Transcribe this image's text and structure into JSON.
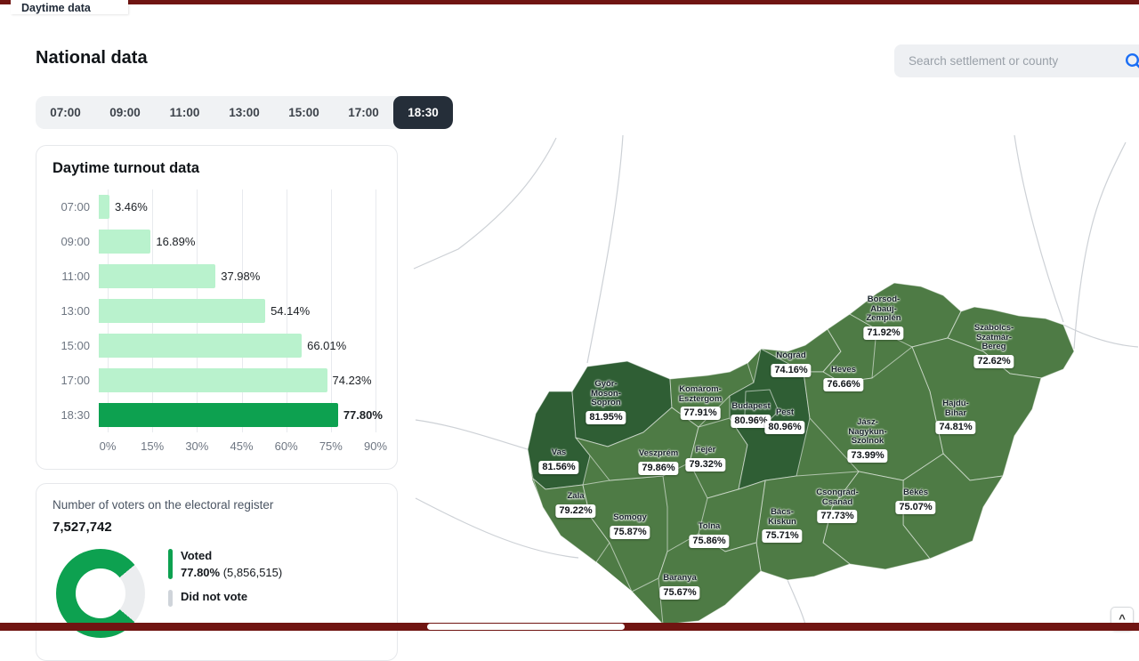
{
  "colors": {
    "accent_bar": "#701512",
    "map_base": "#4e7b45",
    "map_dark": "#2f5e34",
    "bar_color": "#b9f2cd",
    "bar_highlight": "#0da150",
    "search_icon": "#1a6ef5"
  },
  "header": {
    "tab_label": "Daytime data",
    "title": "National data",
    "search_placeholder": "Search settlement or county"
  },
  "time_selector": {
    "options": [
      "07:00",
      "09:00",
      "11:00",
      "13:00",
      "15:00",
      "17:00",
      "18:30"
    ],
    "selected": "18:30"
  },
  "chart_data": {
    "type": "bar",
    "orientation": "horizontal",
    "title": "Daytime turnout data",
    "categories": [
      "07:00",
      "09:00",
      "11:00",
      "13:00",
      "15:00",
      "17:00",
      "18:30"
    ],
    "values": [
      3.46,
      16.89,
      37.98,
      54.14,
      66.01,
      74.23,
      77.8
    ],
    "value_labels": [
      "3.46%",
      "16.89%",
      "37.98%",
      "54.14%",
      "66.01%",
      "74.23%",
      "77.80%"
    ],
    "x_ticks": [
      "0%",
      "15%",
      "30%",
      "45%",
      "60%",
      "75%",
      "90%"
    ],
    "xlim": [
      0,
      90
    ],
    "highlight_index": 6,
    "grid": true,
    "legend_position": "none"
  },
  "register_card": {
    "label": "Number of voters on the electoral register",
    "total": "7,527,742",
    "voted_value": 77.8,
    "legend": {
      "voted_label": "Voted",
      "voted_pct": "77.80%",
      "voted_count": "(5,856,515)",
      "did_not_vote_label": "Did not vote"
    }
  },
  "map": {
    "counties": [
      {
        "id": "gyms",
        "name": "Győr-Moson-Sopron",
        "lines": [
          "Győr-",
          "Moson-",
          "Sopron"
        ],
        "value": "81.95%",
        "shade": "dark"
      },
      {
        "id": "komarom",
        "name": "Komárom-Esztergom",
        "lines": [
          "Komárom-",
          "Esztergom"
        ],
        "value": "77.91%",
        "shade": "base"
      },
      {
        "id": "budapest",
        "name": "Budapest",
        "lines": [
          "Budapest"
        ],
        "value": "80.96%",
        "shade": "dark"
      },
      {
        "id": "pest",
        "name": "Pest",
        "lines": [
          "Pest"
        ],
        "value": "80.96%",
        "shade": "dark"
      },
      {
        "id": "nograd",
        "name": "Nógrád",
        "lines": [
          "Nógrád"
        ],
        "value": "74.16%",
        "shade": "base"
      },
      {
        "id": "heves",
        "name": "Heves",
        "lines": [
          "Heves"
        ],
        "value": "76.66%",
        "shade": "base"
      },
      {
        "id": "borsod",
        "name": "Borsod-Abaúj-Zemplén",
        "lines": [
          "Borsod-",
          "Abaúj-",
          "Zemplén"
        ],
        "value": "71.92%",
        "shade": "base"
      },
      {
        "id": "szabolcs",
        "name": "Szabolcs-Szatmár-Bereg",
        "lines": [
          "Szabolcs-",
          "Szatmár-",
          "Bereg"
        ],
        "value": "72.62%",
        "shade": "base"
      },
      {
        "id": "hajdu",
        "name": "Hajdú-Bihar",
        "lines": [
          "Hajdú-",
          "Bihar"
        ],
        "value": "74.81%",
        "shade": "base"
      },
      {
        "id": "jasz",
        "name": "Jász-Nagykun-Szolnok",
        "lines": [
          "Jász-",
          "Nagykun-",
          "Szolnok"
        ],
        "value": "73.99%",
        "shade": "base"
      },
      {
        "id": "bekes",
        "name": "Békés",
        "lines": [
          "Békés"
        ],
        "value": "75.07%",
        "shade": "base"
      },
      {
        "id": "csongrad",
        "name": "Csongrád-Csanád",
        "lines": [
          "Csongrád-",
          "Csanád"
        ],
        "value": "77.73%",
        "shade": "base"
      },
      {
        "id": "bacs",
        "name": "Bács-Kiskun",
        "lines": [
          "Bács-",
          "Kiskun"
        ],
        "value": "75.71%",
        "shade": "base"
      },
      {
        "id": "tolna",
        "name": "Tolna",
        "lines": [
          "Tolna"
        ],
        "value": "75.86%",
        "shade": "base"
      },
      {
        "id": "baranya",
        "name": "Baranya",
        "lines": [
          "Baranya"
        ],
        "value": "75.67%",
        "shade": "base"
      },
      {
        "id": "somogy",
        "name": "Somogy",
        "lines": [
          "Somogy"
        ],
        "value": "75.87%",
        "shade": "base"
      },
      {
        "id": "zala",
        "name": "Zala",
        "lines": [
          "Zala"
        ],
        "value": "79.22%",
        "shade": "base"
      },
      {
        "id": "vas",
        "name": "Vas",
        "lines": [
          "Vas"
        ],
        "value": "81.56%",
        "shade": "dark"
      },
      {
        "id": "veszprem",
        "name": "Veszprém",
        "lines": [
          "Veszprém"
        ],
        "value": "79.86%",
        "shade": "base"
      },
      {
        "id": "fejer",
        "name": "Fejér",
        "lines": [
          "Fejér"
        ],
        "value": "79.32%",
        "shade": "base"
      }
    ]
  },
  "controls": {
    "map_collapse_glyph": "^"
  }
}
